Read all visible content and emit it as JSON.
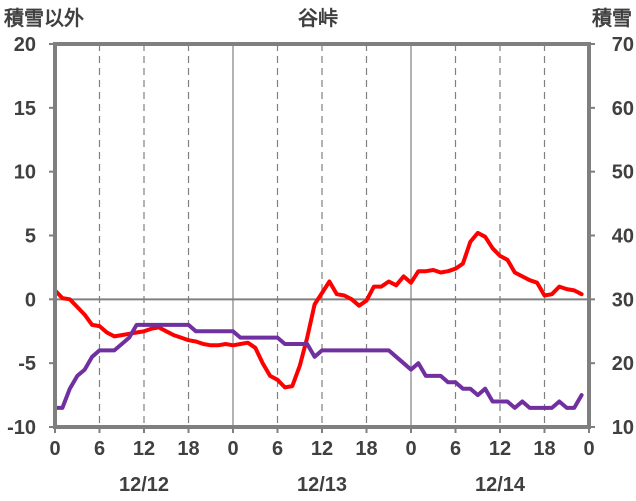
{
  "chart_data": {
    "type": "line",
    "title": "谷峠",
    "y_left_label": "積雪以外",
    "y_right_label": "積雪",
    "y_left_range": [
      -10,
      20
    ],
    "y_right_range": [
      10,
      70
    ],
    "y_left_ticks": [
      "20",
      "15",
      "10",
      "5",
      "0",
      "-5",
      "-10"
    ],
    "y_right_ticks": [
      "70",
      "60",
      "50",
      "40",
      "30",
      "20",
      "10"
    ],
    "x_range_hours": [
      0,
      72
    ],
    "x_ticks": [
      "0",
      "6",
      "12",
      "18",
      "0",
      "6",
      "12",
      "18",
      "0",
      "6",
      "12",
      "18",
      "0"
    ],
    "date_labels": [
      "12/12",
      "12/13",
      "12/14"
    ],
    "grid": "vertical lines every 6 hours (dashed), solid at day boundaries; horizontal line at 0",
    "series": [
      {
        "axis": "left",
        "color": "#ff0000",
        "x": [
          0,
          1,
          2,
          3,
          4,
          5,
          6,
          7,
          8,
          9,
          10,
          11,
          12,
          13,
          14,
          15,
          16,
          17,
          18,
          19,
          20,
          21,
          22,
          23,
          24,
          25,
          26,
          27,
          28,
          29,
          30,
          31,
          32,
          33,
          34,
          35,
          36,
          37,
          38,
          39,
          40,
          41,
          42,
          43,
          44,
          45,
          46,
          47,
          48,
          49,
          50,
          51,
          52,
          53,
          54,
          55,
          56,
          57,
          58,
          59,
          60,
          61,
          62,
          63,
          64,
          65,
          66,
          67,
          68,
          69,
          70,
          71
        ],
        "y": [
          0.7,
          0.1,
          0,
          -0.6,
          -1.2,
          -2,
          -2.1,
          -2.6,
          -2.9,
          -2.8,
          -2.7,
          -2.6,
          -2.5,
          -2.3,
          -2.2,
          -2.5,
          -2.8,
          -3,
          -3.2,
          -3.3,
          -3.5,
          -3.6,
          -3.6,
          -3.5,
          -3.6,
          -3.5,
          -3.4,
          -3.8,
          -5,
          -6,
          -6.3,
          -6.9,
          -6.8,
          -5.2,
          -3,
          -0.4,
          0.5,
          1.4,
          0.4,
          0.3,
          0,
          -0.5,
          -0.1,
          1,
          1,
          1.4,
          1.1,
          1.8,
          1.3,
          2.2,
          2.2,
          2.3,
          2.1,
          2.2,
          2.4,
          2.8,
          4.5,
          5.2,
          4.9,
          4,
          3.4,
          3.1,
          2.1,
          1.8,
          1.5,
          1.3,
          0.3,
          0.4,
          1,
          0.8,
          0.7,
          0.4
        ]
      },
      {
        "axis": "right",
        "color": "#7030a0",
        "x": [
          0,
          1,
          2,
          3,
          4,
          5,
          6,
          7,
          8,
          9,
          10,
          11,
          12,
          13,
          14,
          15,
          16,
          17,
          18,
          19,
          20,
          21,
          22,
          23,
          24,
          25,
          26,
          27,
          28,
          29,
          30,
          31,
          32,
          33,
          34,
          35,
          36,
          37,
          38,
          39,
          40,
          41,
          42,
          43,
          44,
          45,
          46,
          47,
          48,
          49,
          50,
          51,
          52,
          53,
          54,
          55,
          56,
          57,
          58,
          59,
          60,
          61,
          62,
          63,
          64,
          65,
          66,
          67,
          68,
          69,
          70,
          71
        ],
        "y": [
          13,
          13,
          16,
          18,
          19,
          21,
          22,
          22,
          22,
          23,
          24,
          26,
          26,
          26,
          26,
          26,
          26,
          26,
          26,
          25,
          25,
          25,
          25,
          25,
          25,
          24,
          24,
          24,
          24,
          24,
          24,
          23,
          23,
          23,
          23,
          21,
          22,
          22,
          22,
          22,
          22,
          22,
          22,
          22,
          22,
          22,
          21,
          20,
          19,
          20,
          18,
          18,
          18,
          17,
          17,
          16,
          16,
          15,
          16,
          14,
          14,
          14,
          13,
          14,
          13,
          13,
          13,
          13,
          14,
          13,
          13,
          15
        ]
      }
    ]
  }
}
